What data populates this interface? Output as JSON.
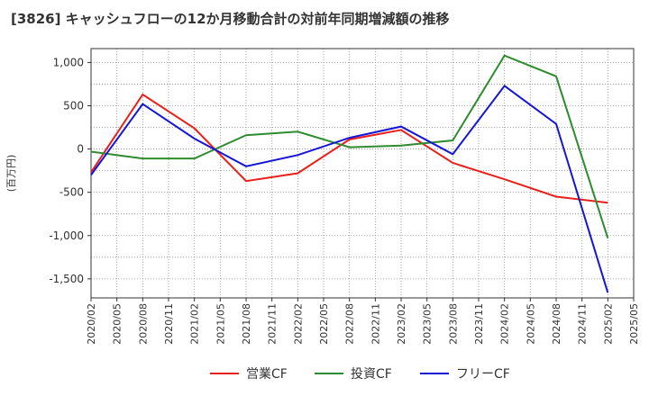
{
  "chart_data": {
    "type": "line",
    "title": "[3826]  キャッシュフローの12か月移動合計の対前年同期増減額の推移",
    "ylabel": "(百万円)",
    "xlabel": "",
    "ylim": [
      -1720,
      1160
    ],
    "y_ticks": [
      1000,
      500,
      0,
      -500,
      -1000,
      -1500
    ],
    "y_tick_labels": [
      "1,000",
      "500",
      "0",
      "-500",
      "-1,000",
      "-1,500"
    ],
    "x_ticks": [
      "2020/02",
      "2020/05",
      "2020/08",
      "2020/11",
      "2021/02",
      "2021/05",
      "2021/08",
      "2021/11",
      "2022/02",
      "2022/05",
      "2022/08",
      "2022/11",
      "2023/02",
      "2023/05",
      "2023/08",
      "2023/11",
      "2024/02",
      "2024/05",
      "2024/08",
      "2024/11",
      "2025/02",
      "2025/05"
    ],
    "x": [
      "2020/02",
      "2020/08",
      "2021/02",
      "2021/08",
      "2022/02",
      "2022/08",
      "2023/02",
      "2023/08",
      "2024/02",
      "2024/08",
      "2025/02"
    ],
    "grid": true,
    "legend_position": "bottom",
    "series": [
      {
        "name": "営業CF",
        "color": "#e8201b",
        "values": [
          -270,
          630,
          240,
          -370,
          -280,
          110,
          220,
          -160,
          -350,
          -550,
          -620
        ]
      },
      {
        "name": "投資CF",
        "color": "#2e8b2e",
        "values": [
          -30,
          -110,
          -110,
          160,
          200,
          20,
          40,
          100,
          1080,
          840,
          -1030
        ]
      },
      {
        "name": "フリーCF",
        "color": "#1515d6",
        "values": [
          -300,
          520,
          120,
          -200,
          -70,
          130,
          260,
          -60,
          730,
          290,
          -1660
        ]
      }
    ]
  }
}
